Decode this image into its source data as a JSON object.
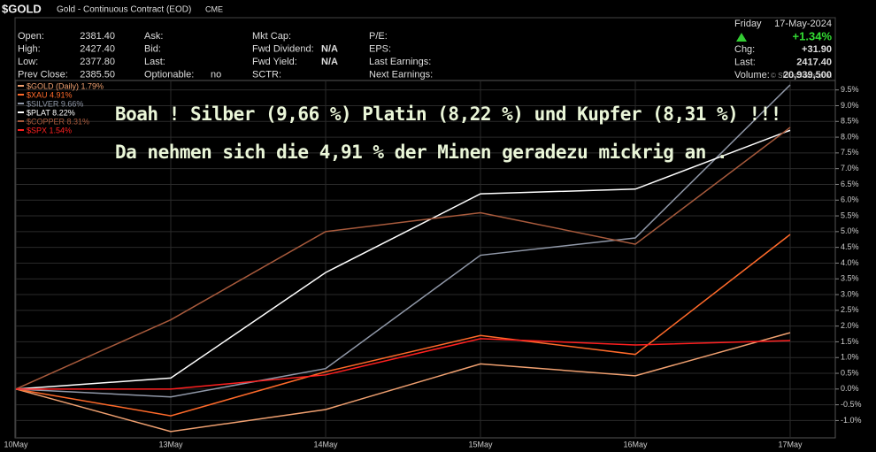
{
  "chart_data": {
    "type": "line",
    "title": "$GOLD",
    "subtitle": "Gold - Continuous Contract (EOD)",
    "exchange": "CME",
    "quote": [
      [
        {
          "label": "Open:",
          "value": "2381.40"
        },
        {
          "label": "High:",
          "value": "2427.40"
        },
        {
          "label": "Low:",
          "value": "2377.80"
        },
        {
          "label": "Prev Close:",
          "value": "2385.50"
        }
      ],
      [
        {
          "label": "Ask:"
        },
        {
          "label": "Bid:"
        },
        {
          "label": "Last:"
        },
        {
          "label": "Optionable:",
          "value": "no"
        }
      ],
      [
        {
          "label": "Mkt Cap:"
        },
        {
          "label": "Fwd Dividend:",
          "value": "N/A"
        },
        {
          "label": "Fwd Yield:",
          "value": "N/A"
        },
        {
          "label": "SCTR:"
        }
      ],
      [
        {
          "label": "P/E:"
        },
        {
          "label": "EPS:"
        },
        {
          "label": "Last Earnings:"
        },
        {
          "label": "Next Earnings:"
        }
      ]
    ],
    "day": "Friday",
    "date": "17-May-2024",
    "change_pct": "+1.34%",
    "summary": [
      {
        "label": "Chg:",
        "value": "+31.90"
      },
      {
        "label": "Last:",
        "value": "2417.40"
      },
      {
        "label": "Volume:",
        "value": "20,939,500"
      }
    ],
    "annotations": [
      "Boah ! Silber (9,66 %) Platin (8,22 %) und Kupfer (8,31 %) !!!",
      "Da nehmen sich die 4,91 % der Minen geradezu mickrig an ."
    ],
    "watermark": "© StockCharts.com",
    "categories": [
      "10May",
      "13May",
      "14May",
      "15May",
      "16May",
      "17May"
    ],
    "series": [
      {
        "name": "$GOLD (Daily) 1.79%",
        "color": "#f0a070",
        "values": [
          0,
          -1.35,
          -0.65,
          0.8,
          0.42,
          1.79
        ]
      },
      {
        "name": "$XAU 4.91%",
        "color": "#ff6a2a",
        "values": [
          0,
          -0.85,
          0.55,
          1.7,
          1.1,
          4.91
        ]
      },
      {
        "name": "$SILVER 9.66%",
        "color": "#9098a8",
        "values": [
          0,
          -0.25,
          0.65,
          4.25,
          4.8,
          9.66
        ]
      },
      {
        "name": "$PLAT 8.22%",
        "color": "#ffffff",
        "values": [
          0,
          0.35,
          3.7,
          6.2,
          6.35,
          8.22
        ]
      },
      {
        "name": "$COPPER 8.31%",
        "color": "#a85a3c",
        "values": [
          0,
          2.2,
          5.0,
          5.6,
          4.6,
          8.31
        ]
      },
      {
        "name": "$SPX 1.54%",
        "color": "#ff2020",
        "values": [
          0,
          0.0,
          0.45,
          1.6,
          1.4,
          1.54
        ]
      }
    ],
    "ylim": [
      -1.55,
      9.8
    ],
    "yticks": [
      {
        "value": -1.0,
        "label": "-1.0%"
      },
      {
        "value": -0.5,
        "label": "-0.5%"
      },
      {
        "value": 0.0,
        "label": "0.0%"
      },
      {
        "value": 0.5,
        "label": "0.5%"
      },
      {
        "value": 1.0,
        "label": "1.0%"
      },
      {
        "value": 1.5,
        "label": "1.5%"
      },
      {
        "value": 2.0,
        "label": "2.0%"
      },
      {
        "value": 2.5,
        "label": "2.5%"
      },
      {
        "value": 3.0,
        "label": "3.0%"
      },
      {
        "value": 3.5,
        "label": "3.5%"
      },
      {
        "value": 4.0,
        "label": "4.0%"
      },
      {
        "value": 4.5,
        "label": "4.5%"
      },
      {
        "value": 5.0,
        "label": "5.0%"
      },
      {
        "value": 5.5,
        "label": "5.5%"
      },
      {
        "value": 6.0,
        "label": "6.0%"
      },
      {
        "value": 6.5,
        "label": "6.5%"
      },
      {
        "value": 7.0,
        "label": "7.0%"
      },
      {
        "value": 7.5,
        "label": "7.5%"
      },
      {
        "value": 8.0,
        "label": "8.0%"
      },
      {
        "value": 8.5,
        "label": "8.5%"
      },
      {
        "value": 9.0,
        "label": "9.0%"
      },
      {
        "value": 9.5,
        "label": "9.5%"
      }
    ],
    "grid": true
  }
}
